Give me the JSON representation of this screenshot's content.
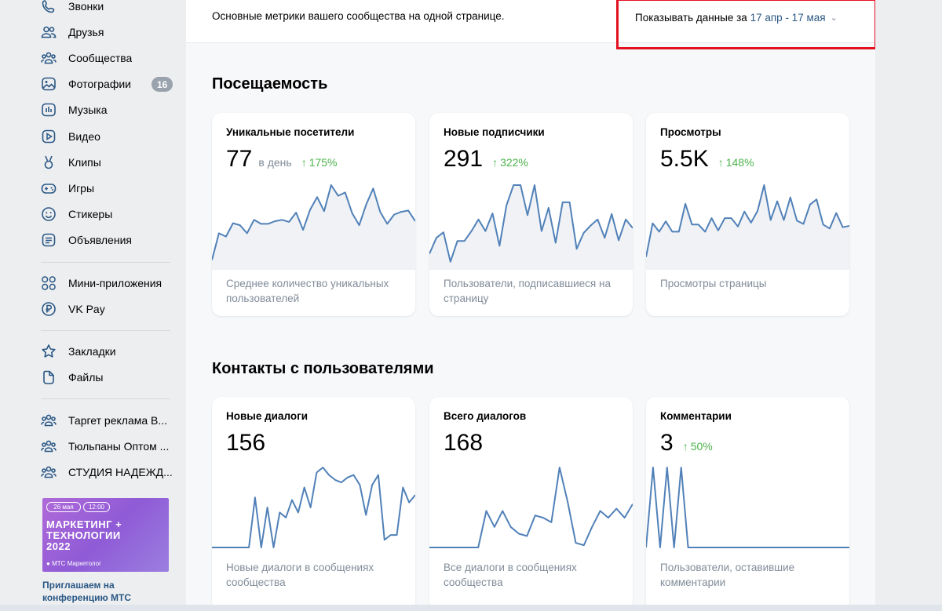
{
  "sidebar": {
    "items": [
      {
        "label": "Звонки",
        "icon": "phone-icon"
      },
      {
        "label": "Друзья",
        "icon": "friends-icon"
      },
      {
        "label": "Сообщества",
        "icon": "communities-icon"
      },
      {
        "label": "Фотографии",
        "icon": "photos-icon",
        "badge": "16"
      },
      {
        "label": "Музыка",
        "icon": "music-icon"
      },
      {
        "label": "Видео",
        "icon": "video-icon"
      },
      {
        "label": "Клипы",
        "icon": "clips-icon"
      },
      {
        "label": "Игры",
        "icon": "gamepad-icon"
      },
      {
        "label": "Стикеры",
        "icon": "smile-icon"
      },
      {
        "label": "Объявления",
        "icon": "ads-icon"
      },
      {
        "label": "Мини-приложения",
        "icon": "grid-icon"
      },
      {
        "label": "VK Pay",
        "icon": "vkpay-icon"
      },
      {
        "label": "Закладки",
        "icon": "star-icon"
      },
      {
        "label": "Файлы",
        "icon": "file-icon"
      },
      {
        "label": "Таргет реклама В...",
        "icon": "group-icon"
      },
      {
        "label": "Тюльпаны Оптом ...",
        "icon": "group-icon"
      },
      {
        "label": "СТУДИЯ НАДЕЖД...",
        "icon": "group-icon"
      }
    ],
    "promo": {
      "date": "26 мая",
      "time": "12:00",
      "headline_1": "МАРКЕТИНГ +",
      "headline_2": "ТЕХНОЛОГИИ",
      "headline_3": "2022",
      "brand": "МТС Маркетолог",
      "caption": "Приглашаем на конференцию МТС"
    }
  },
  "header": {
    "description": "Основные метрики вашего сообщества на одной странице.",
    "date_prefix": "Показывать данные за",
    "date_range": "17 апр - 17 мая"
  },
  "sections": [
    {
      "title": "Посещаемость",
      "cards": [
        {
          "title": "Уникальные посетители",
          "value": "77",
          "unit": "в день",
          "growth": "175%",
          "description": "Среднее количество уникальных пользователей"
        },
        {
          "title": "Новые подписчики",
          "value": "291",
          "unit": "",
          "growth": "322%",
          "description": "Пользователи, подписавшиеся на страницу"
        },
        {
          "title": "Просмотры",
          "value": "5.5K",
          "unit": "",
          "growth": "148%",
          "description": "Просмотры страницы"
        }
      ]
    },
    {
      "title": "Контакты с пользователями",
      "cards": [
        {
          "title": "Новые диалоги",
          "value": "156",
          "unit": "",
          "growth": "",
          "description": "Новые диалоги в сообщениях сообщества"
        },
        {
          "title": "Всего диалогов",
          "value": "168",
          "unit": "",
          "growth": "",
          "description": "Все диалоги в сообщениях сообщества"
        },
        {
          "title": "Комментарии",
          "value": "3",
          "unit": "",
          "growth": "50%",
          "description": "Пользователи, оставившие комментарии"
        }
      ]
    }
  ],
  "chart_data": [
    {
      "type": "area",
      "name": "unique-visitors",
      "values": [
        1,
        5,
        4.5,
        6.5,
        6.2,
        5,
        7,
        6.4,
        6.4,
        6.8,
        7,
        6.7,
        8.1,
        5.5,
        8.5,
        10.4,
        8.3,
        12.2,
        10.6,
        11.1,
        8,
        6.2,
        9.3,
        11.7,
        8.2,
        6.4,
        7.8,
        8.2,
        8.4,
        6.8
      ]
    },
    {
      "type": "area",
      "name": "new-subscribers",
      "values": [
        2.1,
        4.7,
        5.6,
        0.8,
        4.2,
        4.2,
        5.8,
        7.7,
        5.8,
        8.7,
        3.4,
        10,
        13.3,
        13.3,
        8.4,
        13.3,
        5.8,
        9.6,
        3.9,
        10.5,
        10.5,
        2.9,
        5.5,
        6.7,
        7.7,
        4.7,
        8.6,
        4.3,
        7.7,
        6.3
      ]
    },
    {
      "type": "area",
      "name": "page-views",
      "values": [
        1.5,
        6.7,
        5.4,
        7,
        5.4,
        5.4,
        9.7,
        6.5,
        6.5,
        5.4,
        7.5,
        5.6,
        7.5,
        7.5,
        6.2,
        8.5,
        6.8,
        8.6,
        12.6,
        7.2,
        10.1,
        7.2,
        10.7,
        7.1,
        6.6,
        9.6,
        10.4,
        6.5,
        5.9,
        8.3,
        6.1,
        6.3
      ]
    },
    {
      "type": "line",
      "name": "new-dialogs",
      "values": [
        0,
        0,
        0,
        0,
        0,
        0,
        0,
        2,
        0,
        1.6,
        0,
        1.4,
        1.2,
        1.9,
        1.4,
        2.4,
        1.6,
        3,
        3.2,
        2.9,
        2.7,
        2.6,
        2.8,
        2.9,
        2.5,
        1.3,
        2.5,
        2.9,
        0.3,
        0.5,
        0.5,
        2.4,
        1.8,
        2.1
      ]
    },
    {
      "type": "line",
      "name": "total-dialogs",
      "values": [
        0,
        0,
        0,
        0,
        0,
        0,
        0,
        1.6,
        0.9,
        1.6,
        0.9,
        0.6,
        0.5,
        1.4,
        1.3,
        1.1,
        3.5,
        2,
        0.2,
        0.1,
        0.9,
        1.6,
        1.3,
        1.7,
        1.3,
        1.9
      ]
    },
    {
      "type": "line",
      "name": "comments",
      "values": [
        0,
        2,
        0,
        2,
        0,
        2,
        0,
        0,
        0,
        0,
        0,
        0,
        0,
        0,
        0,
        0,
        0,
        0,
        0,
        0,
        0,
        0,
        0,
        0,
        0,
        0,
        0,
        0,
        0,
        0
      ]
    }
  ],
  "colors": {
    "accent": "#2a5885",
    "growth": "#4bb34b",
    "line": "#5181b8",
    "highlight_box": "#e3101f"
  }
}
